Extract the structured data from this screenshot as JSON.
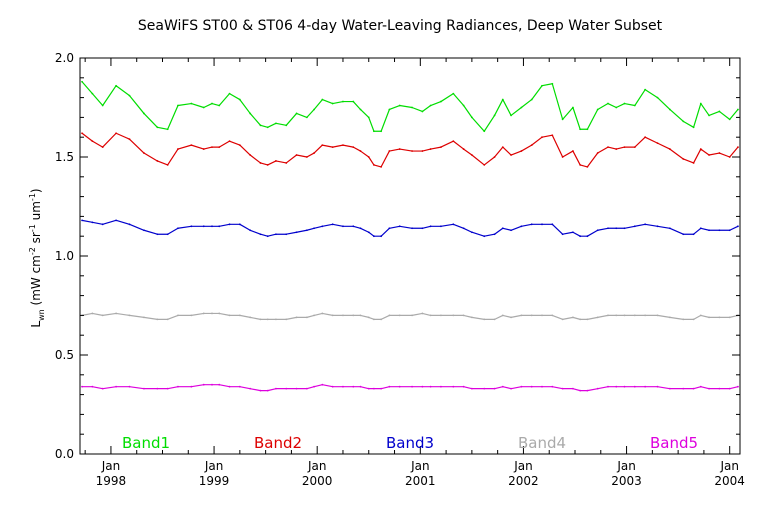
{
  "chart_data": {
    "type": "line",
    "title": "SeaWiFS ST00 & ST06 4-day Water-Leaving Radiances, Deep Water Subset",
    "ylabel": {
      "main": "L",
      "main_sub": "wn",
      "units_prefix": " (mW cm",
      "sup1": "-2",
      "mid1": " sr",
      "sup2": "-1",
      "mid2": " um",
      "sup3": "-1",
      "suffix": ")"
    },
    "xlabel": "",
    "xlim": [
      1997.7,
      2004.1
    ],
    "ylim": [
      0.0,
      2.0
    ],
    "grid": false,
    "legend_position": "bottom",
    "y_ticks": [
      {
        "value": 0.0,
        "label": "0.0"
      },
      {
        "value": 0.5,
        "label": "0.5"
      },
      {
        "value": 1.0,
        "label": "1.0"
      },
      {
        "value": 1.5,
        "label": "1.5"
      },
      {
        "value": 2.0,
        "label": "2.0"
      }
    ],
    "x_ticks": [
      {
        "value": 1998.0,
        "month": "Jan",
        "year": "1998"
      },
      {
        "value": 1999.0,
        "month": "Jan",
        "year": "1999"
      },
      {
        "value": 2000.0,
        "month": "Jan",
        "year": "2000"
      },
      {
        "value": 2001.0,
        "month": "Jan",
        "year": "2001"
      },
      {
        "value": 2002.0,
        "month": "Jan",
        "year": "2002"
      },
      {
        "value": 2003.0,
        "month": "Jan",
        "year": "2003"
      },
      {
        "value": 2004.0,
        "month": "Jan",
        "year": "2004"
      }
    ],
    "series": [
      {
        "name": "Band1",
        "color": "#00dd00",
        "x": [
          1997.72,
          1997.82,
          1997.92,
          1998.05,
          1998.18,
          1998.32,
          1998.45,
          1998.55,
          1998.65,
          1998.78,
          1998.9,
          1998.98,
          1999.05,
          1999.15,
          1999.25,
          1999.35,
          1999.45,
          1999.52,
          1999.6,
          1999.7,
          1999.8,
          1999.9,
          1999.97,
          2000.05,
          2000.15,
          2000.25,
          2000.35,
          2000.42,
          2000.5,
          2000.55,
          2000.62,
          2000.7,
          2000.8,
          2000.92,
          2001.02,
          2001.1,
          2001.2,
          2001.32,
          2001.42,
          2001.5,
          2001.62,
          2001.72,
          2001.8,
          2001.88,
          2001.98,
          2002.08,
          2002.18,
          2002.28,
          2002.38,
          2002.48,
          2002.55,
          2002.62,
          2002.72,
          2002.82,
          2002.9,
          2002.98,
          2003.08,
          2003.18,
          2003.3,
          2003.42,
          2003.55,
          2003.65,
          2003.72,
          2003.8,
          2003.9,
          2004.0,
          2004.08
        ],
        "values": [
          1.88,
          1.82,
          1.76,
          1.86,
          1.81,
          1.72,
          1.65,
          1.64,
          1.76,
          1.77,
          1.75,
          1.77,
          1.76,
          1.82,
          1.79,
          1.72,
          1.66,
          1.65,
          1.67,
          1.66,
          1.72,
          1.7,
          1.74,
          1.79,
          1.77,
          1.78,
          1.78,
          1.74,
          1.7,
          1.63,
          1.63,
          1.74,
          1.76,
          1.75,
          1.73,
          1.76,
          1.78,
          1.82,
          1.76,
          1.7,
          1.63,
          1.71,
          1.79,
          1.71,
          1.75,
          1.79,
          1.86,
          1.87,
          1.69,
          1.75,
          1.64,
          1.64,
          1.74,
          1.77,
          1.75,
          1.77,
          1.76,
          1.84,
          1.8,
          1.74,
          1.68,
          1.65,
          1.77,
          1.71,
          1.73,
          1.69,
          1.74
        ]
      },
      {
        "name": "Band2",
        "color": "#dd0000",
        "x": [
          1997.72,
          1997.82,
          1997.92,
          1998.05,
          1998.18,
          1998.32,
          1998.45,
          1998.55,
          1998.65,
          1998.78,
          1998.9,
          1998.98,
          1999.05,
          1999.15,
          1999.25,
          1999.35,
          1999.45,
          1999.52,
          1999.6,
          1999.7,
          1999.8,
          1999.9,
          1999.97,
          2000.05,
          2000.15,
          2000.25,
          2000.35,
          2000.42,
          2000.5,
          2000.55,
          2000.62,
          2000.7,
          2000.8,
          2000.92,
          2001.02,
          2001.1,
          2001.2,
          2001.32,
          2001.42,
          2001.5,
          2001.62,
          2001.72,
          2001.8,
          2001.88,
          2001.98,
          2002.08,
          2002.18,
          2002.28,
          2002.38,
          2002.48,
          2002.55,
          2002.62,
          2002.72,
          2002.82,
          2002.9,
          2002.98,
          2003.08,
          2003.18,
          2003.3,
          2003.42,
          2003.55,
          2003.65,
          2003.72,
          2003.8,
          2003.9,
          2004.0,
          2004.08
        ],
        "values": [
          1.62,
          1.58,
          1.55,
          1.62,
          1.59,
          1.52,
          1.48,
          1.46,
          1.54,
          1.56,
          1.54,
          1.55,
          1.55,
          1.58,
          1.56,
          1.51,
          1.47,
          1.46,
          1.48,
          1.47,
          1.51,
          1.5,
          1.52,
          1.56,
          1.55,
          1.56,
          1.55,
          1.53,
          1.5,
          1.46,
          1.45,
          1.53,
          1.54,
          1.53,
          1.53,
          1.54,
          1.55,
          1.58,
          1.54,
          1.51,
          1.46,
          1.5,
          1.55,
          1.51,
          1.53,
          1.56,
          1.6,
          1.61,
          1.5,
          1.53,
          1.46,
          1.45,
          1.52,
          1.55,
          1.54,
          1.55,
          1.55,
          1.6,
          1.57,
          1.54,
          1.49,
          1.47,
          1.54,
          1.51,
          1.52,
          1.5,
          1.55
        ]
      },
      {
        "name": "Band3",
        "color": "#0000cc",
        "x": [
          1997.72,
          1997.82,
          1997.92,
          1998.05,
          1998.18,
          1998.32,
          1998.45,
          1998.55,
          1998.65,
          1998.78,
          1998.9,
          1998.98,
          1999.05,
          1999.15,
          1999.25,
          1999.35,
          1999.45,
          1999.52,
          1999.6,
          1999.7,
          1999.8,
          1999.9,
          1999.97,
          2000.05,
          2000.15,
          2000.25,
          2000.35,
          2000.42,
          2000.5,
          2000.55,
          2000.62,
          2000.7,
          2000.8,
          2000.92,
          2001.02,
          2001.1,
          2001.2,
          2001.32,
          2001.42,
          2001.5,
          2001.62,
          2001.72,
          2001.8,
          2001.88,
          2001.98,
          2002.08,
          2002.18,
          2002.28,
          2002.38,
          2002.48,
          2002.55,
          2002.62,
          2002.72,
          2002.82,
          2002.9,
          2002.98,
          2003.08,
          2003.18,
          2003.3,
          2003.42,
          2003.55,
          2003.65,
          2003.72,
          2003.8,
          2003.9,
          2004.0,
          2004.08
        ],
        "values": [
          1.18,
          1.17,
          1.16,
          1.18,
          1.16,
          1.13,
          1.11,
          1.11,
          1.14,
          1.15,
          1.15,
          1.15,
          1.15,
          1.16,
          1.16,
          1.13,
          1.11,
          1.1,
          1.11,
          1.11,
          1.12,
          1.13,
          1.14,
          1.15,
          1.16,
          1.15,
          1.15,
          1.14,
          1.12,
          1.1,
          1.1,
          1.14,
          1.15,
          1.14,
          1.14,
          1.15,
          1.15,
          1.16,
          1.14,
          1.12,
          1.1,
          1.11,
          1.14,
          1.13,
          1.15,
          1.16,
          1.16,
          1.16,
          1.11,
          1.12,
          1.1,
          1.1,
          1.13,
          1.14,
          1.14,
          1.14,
          1.15,
          1.16,
          1.15,
          1.14,
          1.11,
          1.11,
          1.14,
          1.13,
          1.13,
          1.13,
          1.15
        ]
      },
      {
        "name": "Band4",
        "color": "#aaaaaa",
        "x": [
          1997.72,
          1997.82,
          1997.92,
          1998.05,
          1998.18,
          1998.32,
          1998.45,
          1998.55,
          1998.65,
          1998.78,
          1998.9,
          1998.98,
          1999.05,
          1999.15,
          1999.25,
          1999.35,
          1999.45,
          1999.52,
          1999.6,
          1999.7,
          1999.8,
          1999.9,
          1999.97,
          2000.05,
          2000.15,
          2000.25,
          2000.35,
          2000.42,
          2000.5,
          2000.55,
          2000.62,
          2000.7,
          2000.8,
          2000.92,
          2001.02,
          2001.1,
          2001.2,
          2001.32,
          2001.42,
          2001.5,
          2001.62,
          2001.72,
          2001.8,
          2001.88,
          2001.98,
          2002.08,
          2002.18,
          2002.28,
          2002.38,
          2002.48,
          2002.55,
          2002.62,
          2002.72,
          2002.82,
          2002.9,
          2002.98,
          2003.08,
          2003.18,
          2003.3,
          2003.42,
          2003.55,
          2003.65,
          2003.72,
          2003.8,
          2003.9,
          2004.0,
          2004.08
        ],
        "values": [
          0.7,
          0.71,
          0.7,
          0.71,
          0.7,
          0.69,
          0.68,
          0.68,
          0.7,
          0.7,
          0.71,
          0.71,
          0.71,
          0.7,
          0.7,
          0.69,
          0.68,
          0.68,
          0.68,
          0.68,
          0.69,
          0.69,
          0.7,
          0.71,
          0.7,
          0.7,
          0.7,
          0.7,
          0.69,
          0.68,
          0.68,
          0.7,
          0.7,
          0.7,
          0.71,
          0.7,
          0.7,
          0.7,
          0.7,
          0.69,
          0.68,
          0.68,
          0.7,
          0.69,
          0.7,
          0.7,
          0.7,
          0.7,
          0.68,
          0.69,
          0.68,
          0.68,
          0.69,
          0.7,
          0.7,
          0.7,
          0.7,
          0.7,
          0.7,
          0.69,
          0.68,
          0.68,
          0.7,
          0.69,
          0.69,
          0.69,
          0.7
        ]
      },
      {
        "name": "Band5",
        "color": "#dd00dd",
        "x": [
          1997.72,
          1997.82,
          1997.92,
          1998.05,
          1998.18,
          1998.32,
          1998.45,
          1998.55,
          1998.65,
          1998.78,
          1998.9,
          1998.98,
          1999.05,
          1999.15,
          1999.25,
          1999.35,
          1999.45,
          1999.52,
          1999.6,
          1999.7,
          1999.8,
          1999.9,
          1999.97,
          2000.05,
          2000.15,
          2000.25,
          2000.35,
          2000.42,
          2000.5,
          2000.55,
          2000.62,
          2000.7,
          2000.8,
          2000.92,
          2001.02,
          2001.1,
          2001.2,
          2001.32,
          2001.42,
          2001.5,
          2001.62,
          2001.72,
          2001.8,
          2001.88,
          2001.98,
          2002.08,
          2002.18,
          2002.28,
          2002.38,
          2002.48,
          2002.55,
          2002.62,
          2002.72,
          2002.82,
          2002.9,
          2002.98,
          2003.08,
          2003.18,
          2003.3,
          2003.42,
          2003.55,
          2003.65,
          2003.72,
          2003.8,
          2003.9,
          2004.0,
          2004.08
        ],
        "values": [
          0.34,
          0.34,
          0.33,
          0.34,
          0.34,
          0.33,
          0.33,
          0.33,
          0.34,
          0.34,
          0.35,
          0.35,
          0.35,
          0.34,
          0.34,
          0.33,
          0.32,
          0.32,
          0.33,
          0.33,
          0.33,
          0.33,
          0.34,
          0.35,
          0.34,
          0.34,
          0.34,
          0.34,
          0.33,
          0.33,
          0.33,
          0.34,
          0.34,
          0.34,
          0.34,
          0.34,
          0.34,
          0.34,
          0.34,
          0.33,
          0.33,
          0.33,
          0.34,
          0.33,
          0.34,
          0.34,
          0.34,
          0.34,
          0.33,
          0.33,
          0.32,
          0.32,
          0.33,
          0.34,
          0.34,
          0.34,
          0.34,
          0.34,
          0.34,
          0.33,
          0.33,
          0.33,
          0.34,
          0.33,
          0.33,
          0.33,
          0.34
        ]
      }
    ]
  }
}
